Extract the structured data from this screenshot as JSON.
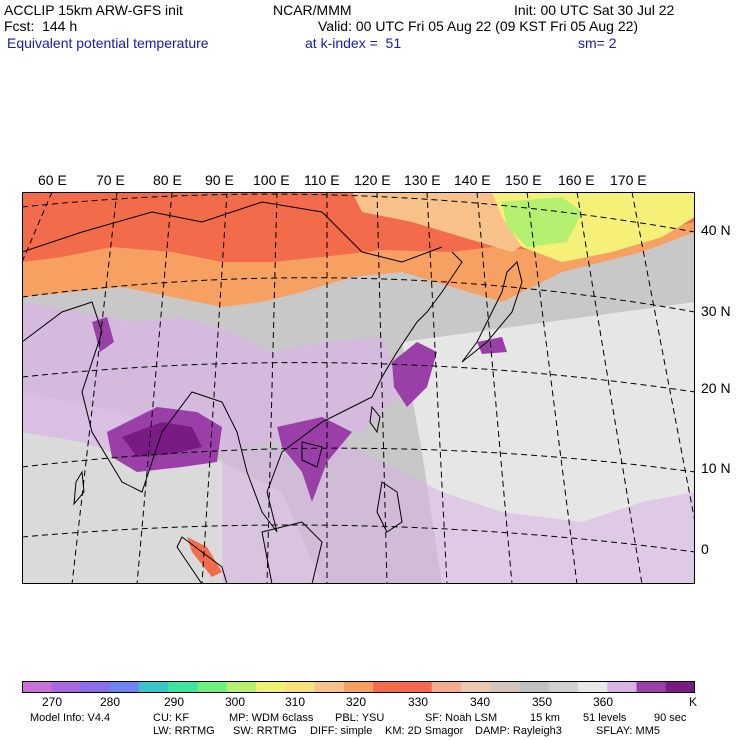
{
  "header": {
    "model": "ACCLIP 15km ARW-GFS init",
    "org": "NCAR/MMM",
    "init": "Init: 00 UTC Sat 30 Jul 22",
    "fcst": "Fcst:  144 h",
    "valid": "Valid: 00 UTC Fri 05 Aug 22 (09 KST Fri 05 Aug 22)",
    "field": "Equivalent potential temperature",
    "level": "at k-index =  51",
    "smooth": "sm= 2"
  },
  "map": {
    "lon_labels": [
      "60 E",
      "70 E",
      "80 E",
      "90 E",
      "100 E",
      "110 E",
      "120 E",
      "130 E",
      "140 E",
      "150 E",
      "160 E",
      "170 E"
    ],
    "lat_labels": [
      "40 N",
      "30 N",
      "20 N",
      "10 N",
      "0"
    ],
    "colors": {
      "land_gray": "#c8c8c8",
      "pale_purple": "#d9b3e6",
      "purple": "#9a3fa8",
      "dark_purple": "#7a1a85",
      "orange": "#f5a460",
      "red_orange": "#f26b4a",
      "light_orange": "#f9c28a",
      "yellow": "#f5f078",
      "light_green": "#b5f070"
    }
  },
  "colorbar": {
    "colors": [
      "#c96fd8",
      "#a868e0",
      "#8a6de8",
      "#6f84f0",
      "#38c7c8",
      "#3ce6a0",
      "#6fef80",
      "#b5f070",
      "#eef270",
      "#f8e17a",
      "#f9c28a",
      "#f6a162",
      "#f26b4a",
      "#f4674e",
      "#f2ad8e",
      "#e9c9b0",
      "#d4c4bb",
      "#c0c0c0",
      "#d0d0d0",
      "#e8e8e8",
      "#d9b3e6",
      "#9a3fa8",
      "#7a1a85"
    ],
    "tick_labels": [
      "270",
      "280",
      "290",
      "300",
      "310",
      "320",
      "330",
      "340",
      "350",
      "360"
    ],
    "unit": "K"
  },
  "footer": {
    "line1": [
      "Model Info: V4.4",
      "CU: KF",
      "MP: WDM 6class",
      "PBL: YSU",
      "SF: Noah LSM",
      "15 km",
      "51 levels",
      "90 sec"
    ],
    "line2": [
      "LW: RRTMG",
      "SW: RRTMG",
      "DIFF: simple",
      "KM: 2D Smagor",
      "DAMP: Rayleigh3",
      "SFLAY: MM5"
    ]
  }
}
